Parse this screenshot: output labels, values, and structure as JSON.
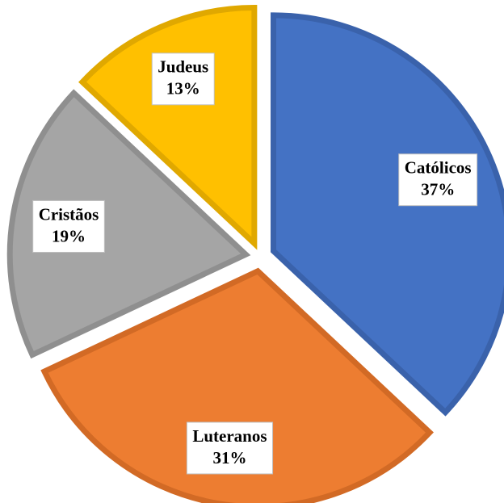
{
  "chart_data": {
    "type": "pie",
    "categories": [
      "Católicos",
      "Luteranos",
      "Cristãos",
      "Judeus"
    ],
    "values": [
      37,
      31,
      19,
      13
    ],
    "value_labels": [
      "37%",
      "31%",
      "19%",
      "13%"
    ],
    "colors": [
      "#4472c4",
      "#ed7d31",
      "#a5a5a5",
      "#ffc000"
    ],
    "edge_colors": [
      "#3a62ab",
      "#d26a25",
      "#8f8f8f",
      "#e0a800"
    ]
  }
}
